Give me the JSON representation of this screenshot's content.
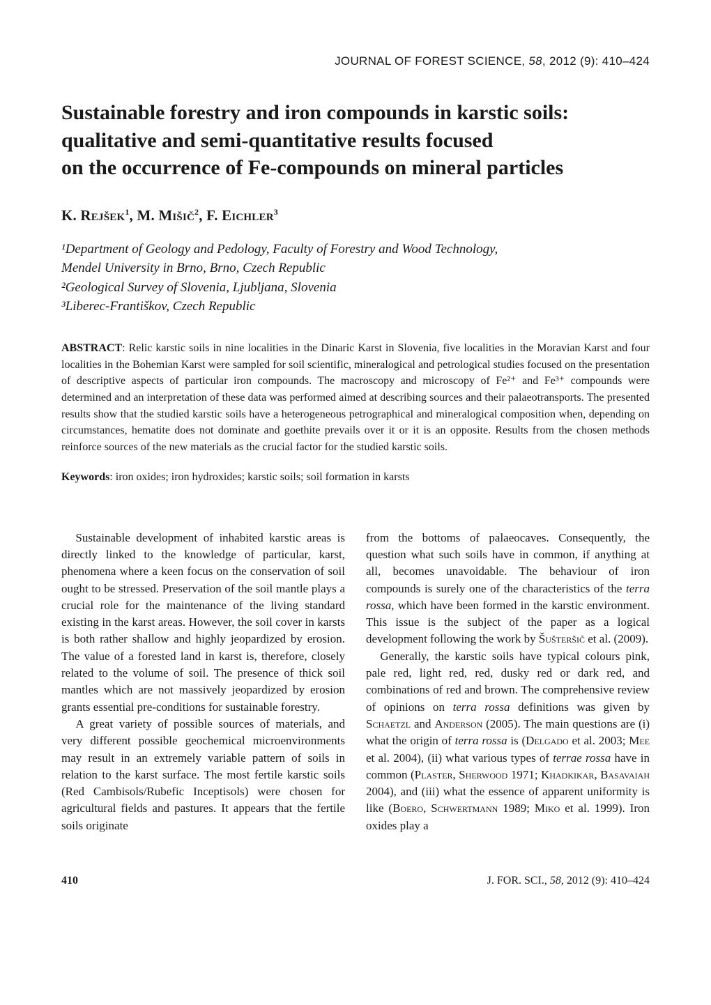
{
  "journal": {
    "name": "JOURNAL OF FOREST SCIENCE",
    "volume": "58",
    "year_issue": "2012 (9)",
    "pages": "410–424"
  },
  "title_lines": [
    "Sustainable forestry and iron compounds in karstic soils:",
    "qualitative and semi-quantitative results focused",
    "on the occurrence of Fe-compounds on mineral particles"
  ],
  "authors": {
    "a1": {
      "name": "K. Rejšek",
      "sup": "1"
    },
    "a2": {
      "name": "M. Mišič",
      "sup": "2"
    },
    "a3": {
      "name": "F. Eichler",
      "sup": "3"
    }
  },
  "affiliations": {
    "l1": "¹Department of Geology and Pedology, Faculty of Forestry and Wood Technology,",
    "l2": "Mendel University in Brno, Brno, Czech Republic",
    "l3": "²Geological Survey of Slovenia, Ljubljana, Slovenia",
    "l4": "³Liberec-Františkov, Czech Republic"
  },
  "abstract": {
    "label": "ABSTRACT",
    "text": ": Relic karstic soils in nine localities in the Dinaric Karst in Slovenia, five localities in the Moravian Karst and four localities in the Bohemian Karst were sampled for soil scientific, mineralogical and petrological studies focused on the presentation of descriptive aspects of particular iron compounds. The macroscopy and microscopy of Fe²⁺ and Fe³⁺ compounds were determined and an interpretation of these data was performed aimed at describing sources and their palaeotransports. The presented results show that the studied karstic soils have a heterogeneous petrographical and mineralogical composition when, depending on circumstances, hematite does not dominate and goethite prevails over it or it is an opposite. Results from the chosen methods reinforce sources of the new materials as the crucial factor for the studied karstic soils."
  },
  "keywords": {
    "label": "Keywords",
    "text": ": iron oxides; iron hydroxides; karstic soils; soil formation in karsts"
  },
  "body": {
    "left": {
      "p1": "Sustainable development of inhabited karstic areas is directly linked to the knowledge of particular, karst, phenomena where a keen focus on the conservation of soil ought to be stressed. Preservation of the soil mantle plays a crucial role for the maintenance of the living standard existing in the karst areas. However, the soil cover in karsts is both rather shallow and highly jeopardized by erosion. The value of a forested land in karst is, therefore, closely related to the volume of soil. The presence of thick soil mantles which are not massively jeopardized by erosion grants essential pre-conditions for sustainable forestry.",
      "p2": "A great variety of possible sources of materials, and very different possible geochemical microenvironments may result in an extremely variable pattern of soils in relation to the karst surface. The most fertile karstic soils (Red Cambisols/Rubefic Inceptisols) were chosen for agricultural fields and pastures. It appears that the fertile soils originate"
    },
    "right": {
      "p1a": "from the bottoms of palaeocaves. Consequently, the question what such soils have in common, if anything at all, becomes unavoidable.  The behaviour of iron compounds is surely one of the characteristics of the ",
      "p1_ital1": "terra rossa,",
      "p1b": " which have been formed in the karstic environment. This issue is the subject of the paper as a logical development following the work by ",
      "p1_sc1": "Šušteršič",
      "p1c": " et al. (2009).",
      "p2a": "Generally, the karstic soils have typical colours pink, pale red, light red, red, dusky red or dark red, and combinations of red and brown. The comprehensive review of opinions on ",
      "p2_ital1": "terra rossa",
      "p2b": " definitions was given by ",
      "p2_sc1": "Schaetzl",
      "p2c": " and ",
      "p2_sc2": "Anderson",
      "p2d": " (2005). The main questions are (i) what the origin of ",
      "p2_ital2": "terra rossa",
      "p2e": " is (",
      "p2_sc3": "Delgado",
      "p2f": " et al. 2003; ",
      "p2_sc4": "Mee",
      "p2g": " et al. 2004), (ii) what various types of ",
      "p2_ital3": "terrae rossa",
      "p2h": " have in common (",
      "p2_sc5": "Plaster, Sherwood",
      "p2i": " 1971; ",
      "p2_sc6": "Khadkikar, Basavaiah",
      "p2j": " 2004), and (iii) what the essence of apparent uniformity is like (",
      "p2_sc7": "Boero, Schwertmann",
      "p2k": " 1989; ",
      "p2_sc8": "Miko",
      "p2l": " et al. 1999). Iron oxides play a"
    }
  },
  "footer": {
    "page": "410",
    "journal_abbr": "J. FOR. SCI.",
    "volume": "58",
    "rest": ", 2012 (9): 410–424"
  }
}
